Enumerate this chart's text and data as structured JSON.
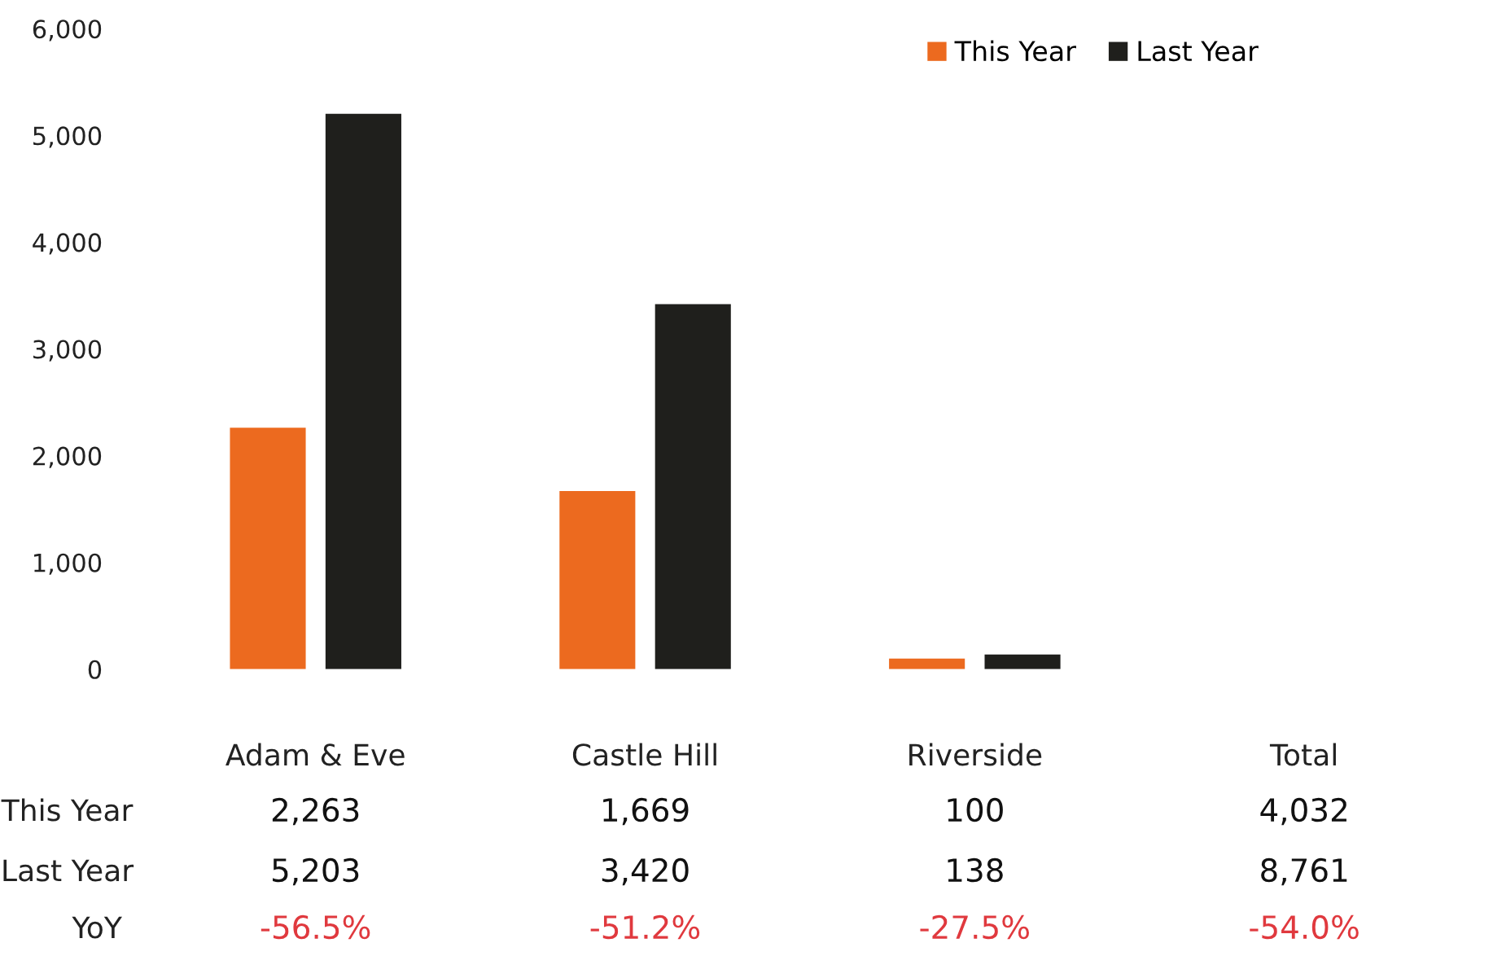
{
  "chart_data": {
    "type": "bar",
    "categories": [
      "Adam & Eve",
      "Castle Hill",
      "Riverside",
      "Total"
    ],
    "series": [
      {
        "name": "This Year",
        "color": "#ec6a1f",
        "values": [
          2263,
          1669,
          100,
          null
        ],
        "value_labels": [
          "2,263",
          "1,669",
          "100",
          "4,032"
        ]
      },
      {
        "name": "Last Year",
        "color": "#1f1f1c",
        "values": [
          5203,
          3420,
          138,
          null
        ],
        "value_labels": [
          "5,203",
          "3,420",
          "138",
          "8,761"
        ]
      }
    ],
    "annotations": [
      "YoY",
      "-56.5%",
      "-51.2%",
      "-27.5%",
      "-54.0%"
    ],
    "ylim": [
      0,
      6000
    ],
    "yticks": [
      {
        "value": 0,
        "label": "0"
      },
      {
        "value": 1000,
        "label": "1,000"
      },
      {
        "value": 2000,
        "label": "2,000"
      },
      {
        "value": 3000,
        "label": "3,000"
      },
      {
        "value": 4000,
        "label": "4,000"
      },
      {
        "value": 5000,
        "label": "5,000"
      },
      {
        "value": 6000,
        "label": "6,000"
      }
    ],
    "grid": false,
    "legend": "top right",
    "data_labels": false
  }
}
